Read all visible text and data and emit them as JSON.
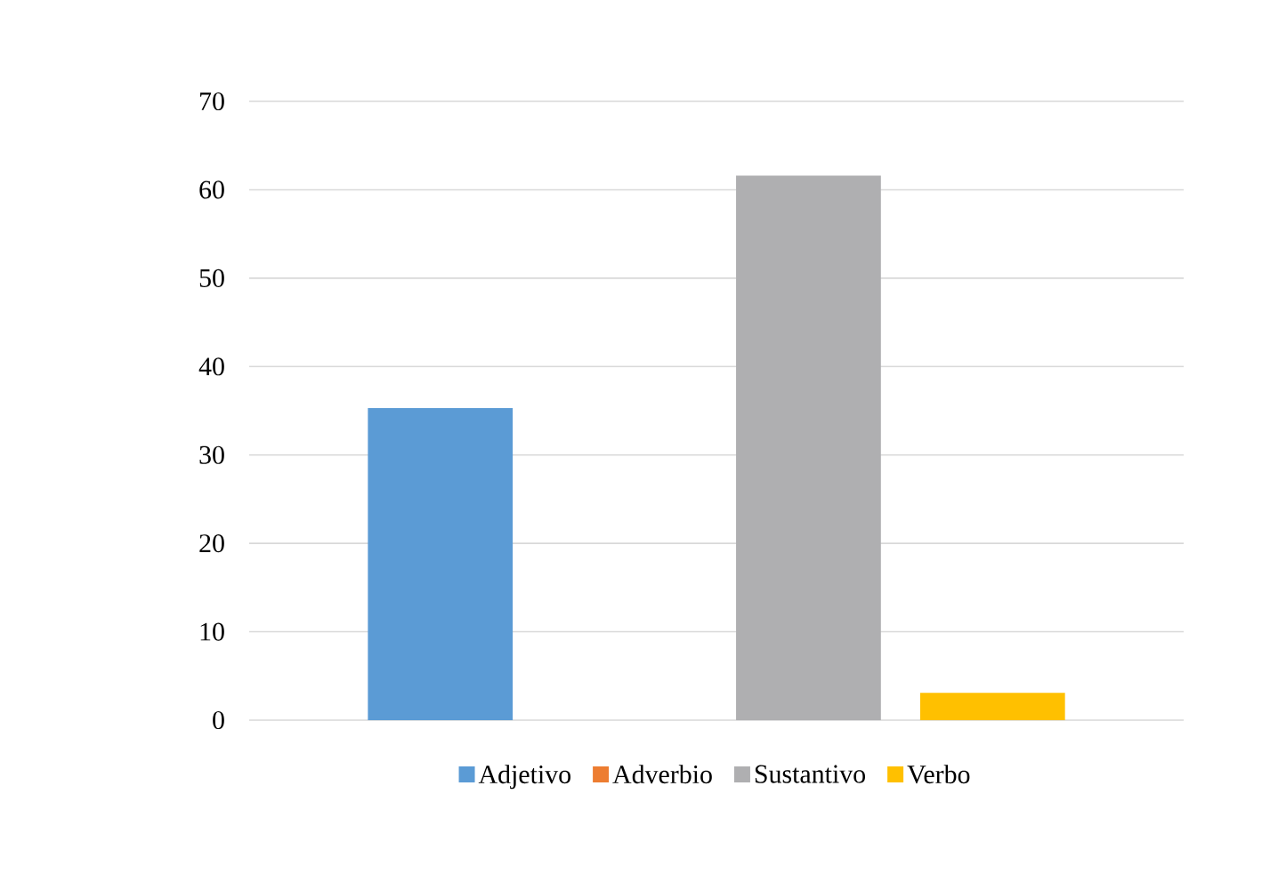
{
  "chart_data": {
    "type": "bar",
    "categories": [
      null
    ],
    "series": [
      {
        "name": "Adjetivo",
        "color": "#5b9bd5",
        "values": [
          35.3
        ]
      },
      {
        "name": "Adverbio",
        "color": "#ed7d31",
        "values": [
          0
        ]
      },
      {
        "name": "Sustantivo",
        "color": "#afafb1",
        "values": [
          61.6
        ]
      },
      {
        "name": "Verbo",
        "color": "#ffc000",
        "values": [
          3.1
        ]
      }
    ],
    "ylim": [
      0,
      70
    ],
    "yticks": [
      0,
      10,
      20,
      30,
      40,
      50,
      60,
      70
    ],
    "grid": "y",
    "legend": "bottom"
  }
}
